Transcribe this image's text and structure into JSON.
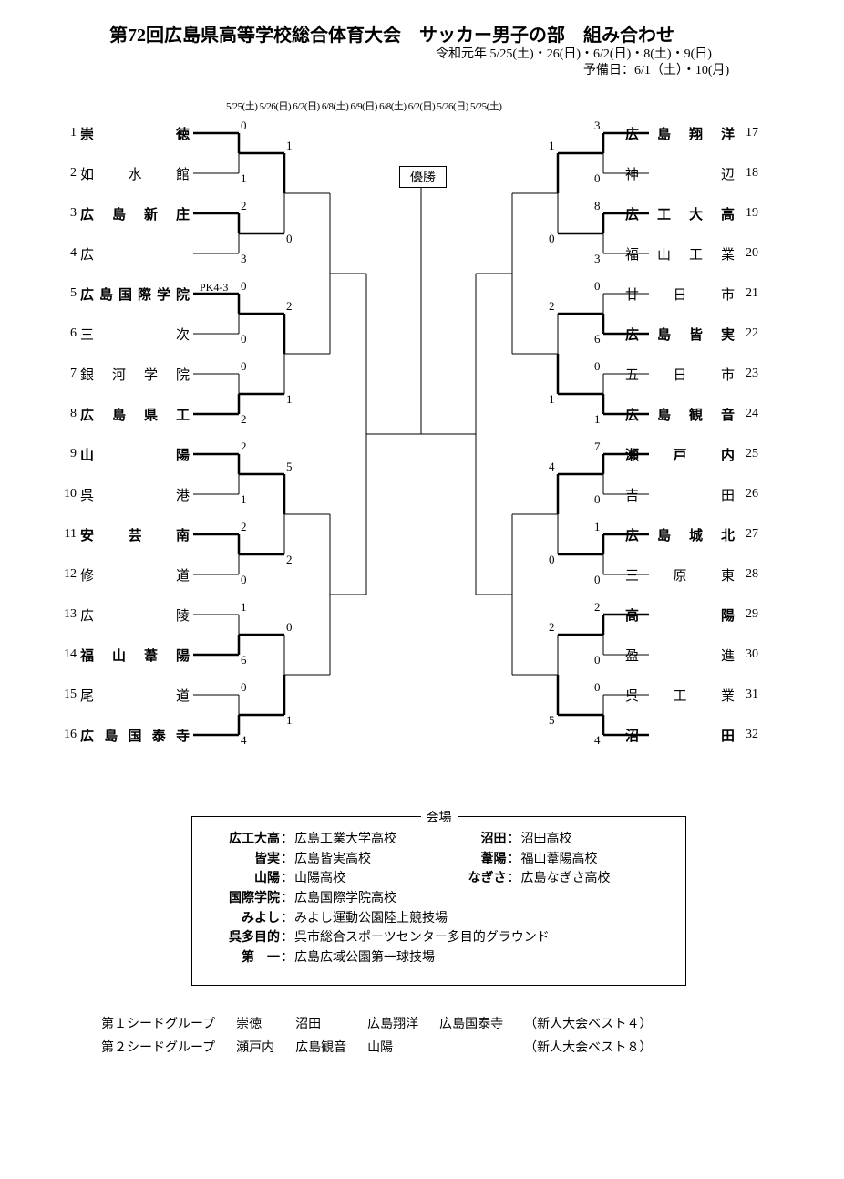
{
  "header": {
    "title": "第72回広島県高等学校総合体育大会　サッカー男子の部　組み合わせ",
    "dates": "令和元年 5/25(土)・26(日)・6/2(日)・8(土)・9(日)",
    "reserve": "予備日：6/1（土）・10(月)",
    "rounds": "5/25(土) 5/26(日) 6/2(日) 6/8(土) 6/9(日) 6/8(土) 6/2(日) 5/26(日) 5/25(土)",
    "center": "優勝"
  },
  "left_teams": [
    {
      "seed": "1",
      "name": "崇　　　徳",
      "bold": true
    },
    {
      "seed": "2",
      "name": "如　水　館",
      "bold": false
    },
    {
      "seed": "3",
      "name": "広　島　新　庄",
      "bold": true
    },
    {
      "seed": "4",
      "name": "広",
      "bold": false
    },
    {
      "seed": "5",
      "name": "広島国際学院",
      "bold": true
    },
    {
      "seed": "6",
      "name": "三　　　次",
      "bold": false
    },
    {
      "seed": "7",
      "name": "銀　河　学　院",
      "bold": false
    },
    {
      "seed": "8",
      "name": "広　島　県　工",
      "bold": true
    },
    {
      "seed": "9",
      "name": "山　　　陽",
      "bold": true
    },
    {
      "seed": "10",
      "name": "呉　　　港",
      "bold": false
    },
    {
      "seed": "11",
      "name": "安　芸　南",
      "bold": true
    },
    {
      "seed": "12",
      "name": "修　　　道",
      "bold": false
    },
    {
      "seed": "13",
      "name": "広　　　陵",
      "bold": false
    },
    {
      "seed": "14",
      "name": "福　山　葦　陽",
      "bold": true
    },
    {
      "seed": "15",
      "name": "尾　　　道",
      "bold": false
    },
    {
      "seed": "16",
      "name": "広 島 国 泰 寺",
      "bold": true
    }
  ],
  "right_teams": [
    {
      "seed": "17",
      "name": "広　島　翔　洋",
      "bold": true
    },
    {
      "seed": "18",
      "name": "神　　　辺",
      "bold": false
    },
    {
      "seed": "19",
      "name": "広　工　大　高",
      "bold": true
    },
    {
      "seed": "20",
      "name": "福　山　工　業",
      "bold": false
    },
    {
      "seed": "21",
      "name": "廿　日　市",
      "bold": false
    },
    {
      "seed": "22",
      "name": "広　島　皆　実",
      "bold": true
    },
    {
      "seed": "23",
      "name": "五　日　市",
      "bold": false
    },
    {
      "seed": "24",
      "name": "広　島　観　音",
      "bold": true
    },
    {
      "seed": "25",
      "name": "瀬　戸　内",
      "bold": true
    },
    {
      "seed": "26",
      "name": "吉　　　田",
      "bold": false
    },
    {
      "seed": "27",
      "name": "広　島　城　北",
      "bold": true
    },
    {
      "seed": "28",
      "name": "三　原　東",
      "bold": false
    },
    {
      "seed": "29",
      "name": "高　　　陽",
      "bold": true
    },
    {
      "seed": "30",
      "name": "盈　　　進",
      "bold": false
    },
    {
      "seed": "31",
      "name": "呉　工　業",
      "bold": false
    },
    {
      "seed": "32",
      "name": "沼　　　田",
      "bold": true
    }
  ],
  "scores_left": {
    "r1": [
      [
        "0",
        "1"
      ],
      [
        "2",
        "3"
      ],
      [
        "0",
        "0"
      ],
      [
        "0",
        "2"
      ],
      [
        "2",
        "1"
      ],
      [
        "2",
        "0"
      ],
      [
        "1",
        "6"
      ],
      [
        "0",
        "4"
      ]
    ],
    "r2": [
      [
        "1",
        "0"
      ],
      [
        "2",
        "1"
      ],
      [
        "5",
        "2"
      ],
      [
        "0",
        "1"
      ]
    ],
    "r1_pk": "PK4-3"
  },
  "scores_right": {
    "r1": [
      [
        "3",
        "0"
      ],
      [
        "8",
        "3"
      ],
      [
        "0",
        "6"
      ],
      [
        "0",
        "1"
      ],
      [
        "7",
        "0"
      ],
      [
        "1",
        "0"
      ],
      [
        "2",
        "0"
      ],
      [
        "0",
        "4"
      ]
    ],
    "r2": [
      [
        "1",
        "0"
      ],
      [
        "2",
        "1"
      ],
      [
        "4",
        "0"
      ],
      [
        "2",
        "5"
      ]
    ]
  },
  "venues": {
    "title": "会場",
    "rows": [
      {
        "l": "広工大高",
        "v": "広島工業大学高校",
        "l2": "沼田",
        "v2": "沼田高校"
      },
      {
        "l": "皆実",
        "v": "広島皆実高校",
        "l2": "葦陽",
        "v2": "福山葦陽高校"
      },
      {
        "l": "山陽",
        "v": "山陽高校",
        "l2": "なぎさ",
        "v2": "広島なぎさ高校"
      },
      {
        "l": "国際学院",
        "v": "広島国際学院高校"
      },
      {
        "l": "みよし",
        "v": "みよし運動公園陸上競技場"
      },
      {
        "l": "呉多目的",
        "v": "呉市総合スポーツセンター多目的グラウンド"
      },
      {
        "l": "第　一",
        "v": "広島広域公園第一球技場"
      }
    ]
  },
  "seed_groups": {
    "g1": {
      "label": "第１シードグループ",
      "t1": "崇徳",
      "t2": "沼田",
      "t3": "広島翔洋",
      "t4": "広島国泰寺",
      "note": "（新人大会ベスト４）"
    },
    "g2": {
      "label": "第２シードグループ",
      "t1": "瀬戸内",
      "t2": "広島観音",
      "t3": "山陽",
      "t4": "",
      "note": "（新人大会ベスト８）"
    }
  }
}
